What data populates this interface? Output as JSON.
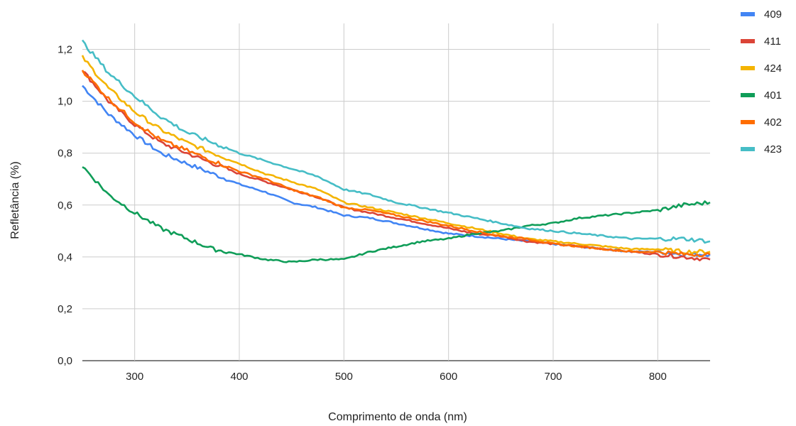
{
  "chart_data": {
    "type": "line",
    "title": "",
    "xlabel": "Comprimento de onda (nm)",
    "ylabel": "Refletância (%)",
    "xlim": [
      250,
      850
    ],
    "ylim": [
      0,
      1.3
    ],
    "x_ticks": [
      300,
      400,
      500,
      600,
      700,
      800
    ],
    "x_tick_labels": [
      "300",
      "400",
      "500",
      "600",
      "700",
      "800"
    ],
    "y_ticks": [
      0,
      0.2,
      0.4,
      0.6,
      0.8,
      1.0,
      1.2
    ],
    "y_tick_labels": [
      "0,0",
      "0,2",
      "0,4",
      "0,6",
      "0,8",
      "1,0",
      "1,2"
    ],
    "grid": true,
    "legend_position": "right",
    "x": [
      250,
      275,
      300,
      325,
      350,
      375,
      400,
      425,
      450,
      475,
      500,
      525,
      550,
      575,
      600,
      625,
      650,
      675,
      700,
      725,
      750,
      775,
      800,
      825,
      850
    ],
    "series": [
      {
        "name": "409",
        "color": "#4285F4",
        "values": [
          1.06,
          0.95,
          0.87,
          0.8,
          0.76,
          0.72,
          0.68,
          0.65,
          0.61,
          0.59,
          0.56,
          0.55,
          0.53,
          0.51,
          0.49,
          0.48,
          0.47,
          0.46,
          0.45,
          0.44,
          0.43,
          0.42,
          0.42,
          0.41,
          0.41
        ]
      },
      {
        "name": "411",
        "color": "#DB4437",
        "values": [
          1.12,
          1.0,
          0.91,
          0.84,
          0.8,
          0.76,
          0.72,
          0.69,
          0.66,
          0.63,
          0.59,
          0.57,
          0.55,
          0.53,
          0.51,
          0.49,
          0.48,
          0.46,
          0.45,
          0.44,
          0.43,
          0.42,
          0.41,
          0.4,
          0.39
        ]
      },
      {
        "name": "424",
        "color": "#F4B400",
        "values": [
          1.17,
          1.05,
          0.96,
          0.89,
          0.84,
          0.8,
          0.76,
          0.72,
          0.69,
          0.66,
          0.61,
          0.59,
          0.57,
          0.55,
          0.53,
          0.51,
          0.49,
          0.47,
          0.46,
          0.45,
          0.44,
          0.43,
          0.43,
          0.42,
          0.42
        ]
      },
      {
        "name": "401",
        "color": "#0F9D58",
        "values": [
          0.75,
          0.64,
          0.57,
          0.51,
          0.47,
          0.43,
          0.41,
          0.39,
          0.38,
          0.39,
          0.39,
          0.42,
          0.44,
          0.46,
          0.47,
          0.49,
          0.5,
          0.52,
          0.53,
          0.55,
          0.56,
          0.57,
          0.58,
          0.6,
          0.61
        ]
      },
      {
        "name": "402",
        "color": "#FF6D00",
        "values": [
          1.12,
          1.01,
          0.92,
          0.85,
          0.81,
          0.77,
          0.73,
          0.7,
          0.66,
          0.63,
          0.59,
          0.58,
          0.56,
          0.54,
          0.52,
          0.5,
          0.48,
          0.47,
          0.45,
          0.44,
          0.43,
          0.42,
          0.42,
          0.41,
          0.41
        ]
      },
      {
        "name": "423",
        "color": "#46BDC6",
        "values": [
          1.23,
          1.11,
          1.02,
          0.94,
          0.88,
          0.84,
          0.8,
          0.77,
          0.74,
          0.71,
          0.66,
          0.64,
          0.61,
          0.59,
          0.57,
          0.55,
          0.53,
          0.51,
          0.5,
          0.49,
          0.48,
          0.47,
          0.47,
          0.47,
          0.46
        ]
      }
    ]
  }
}
